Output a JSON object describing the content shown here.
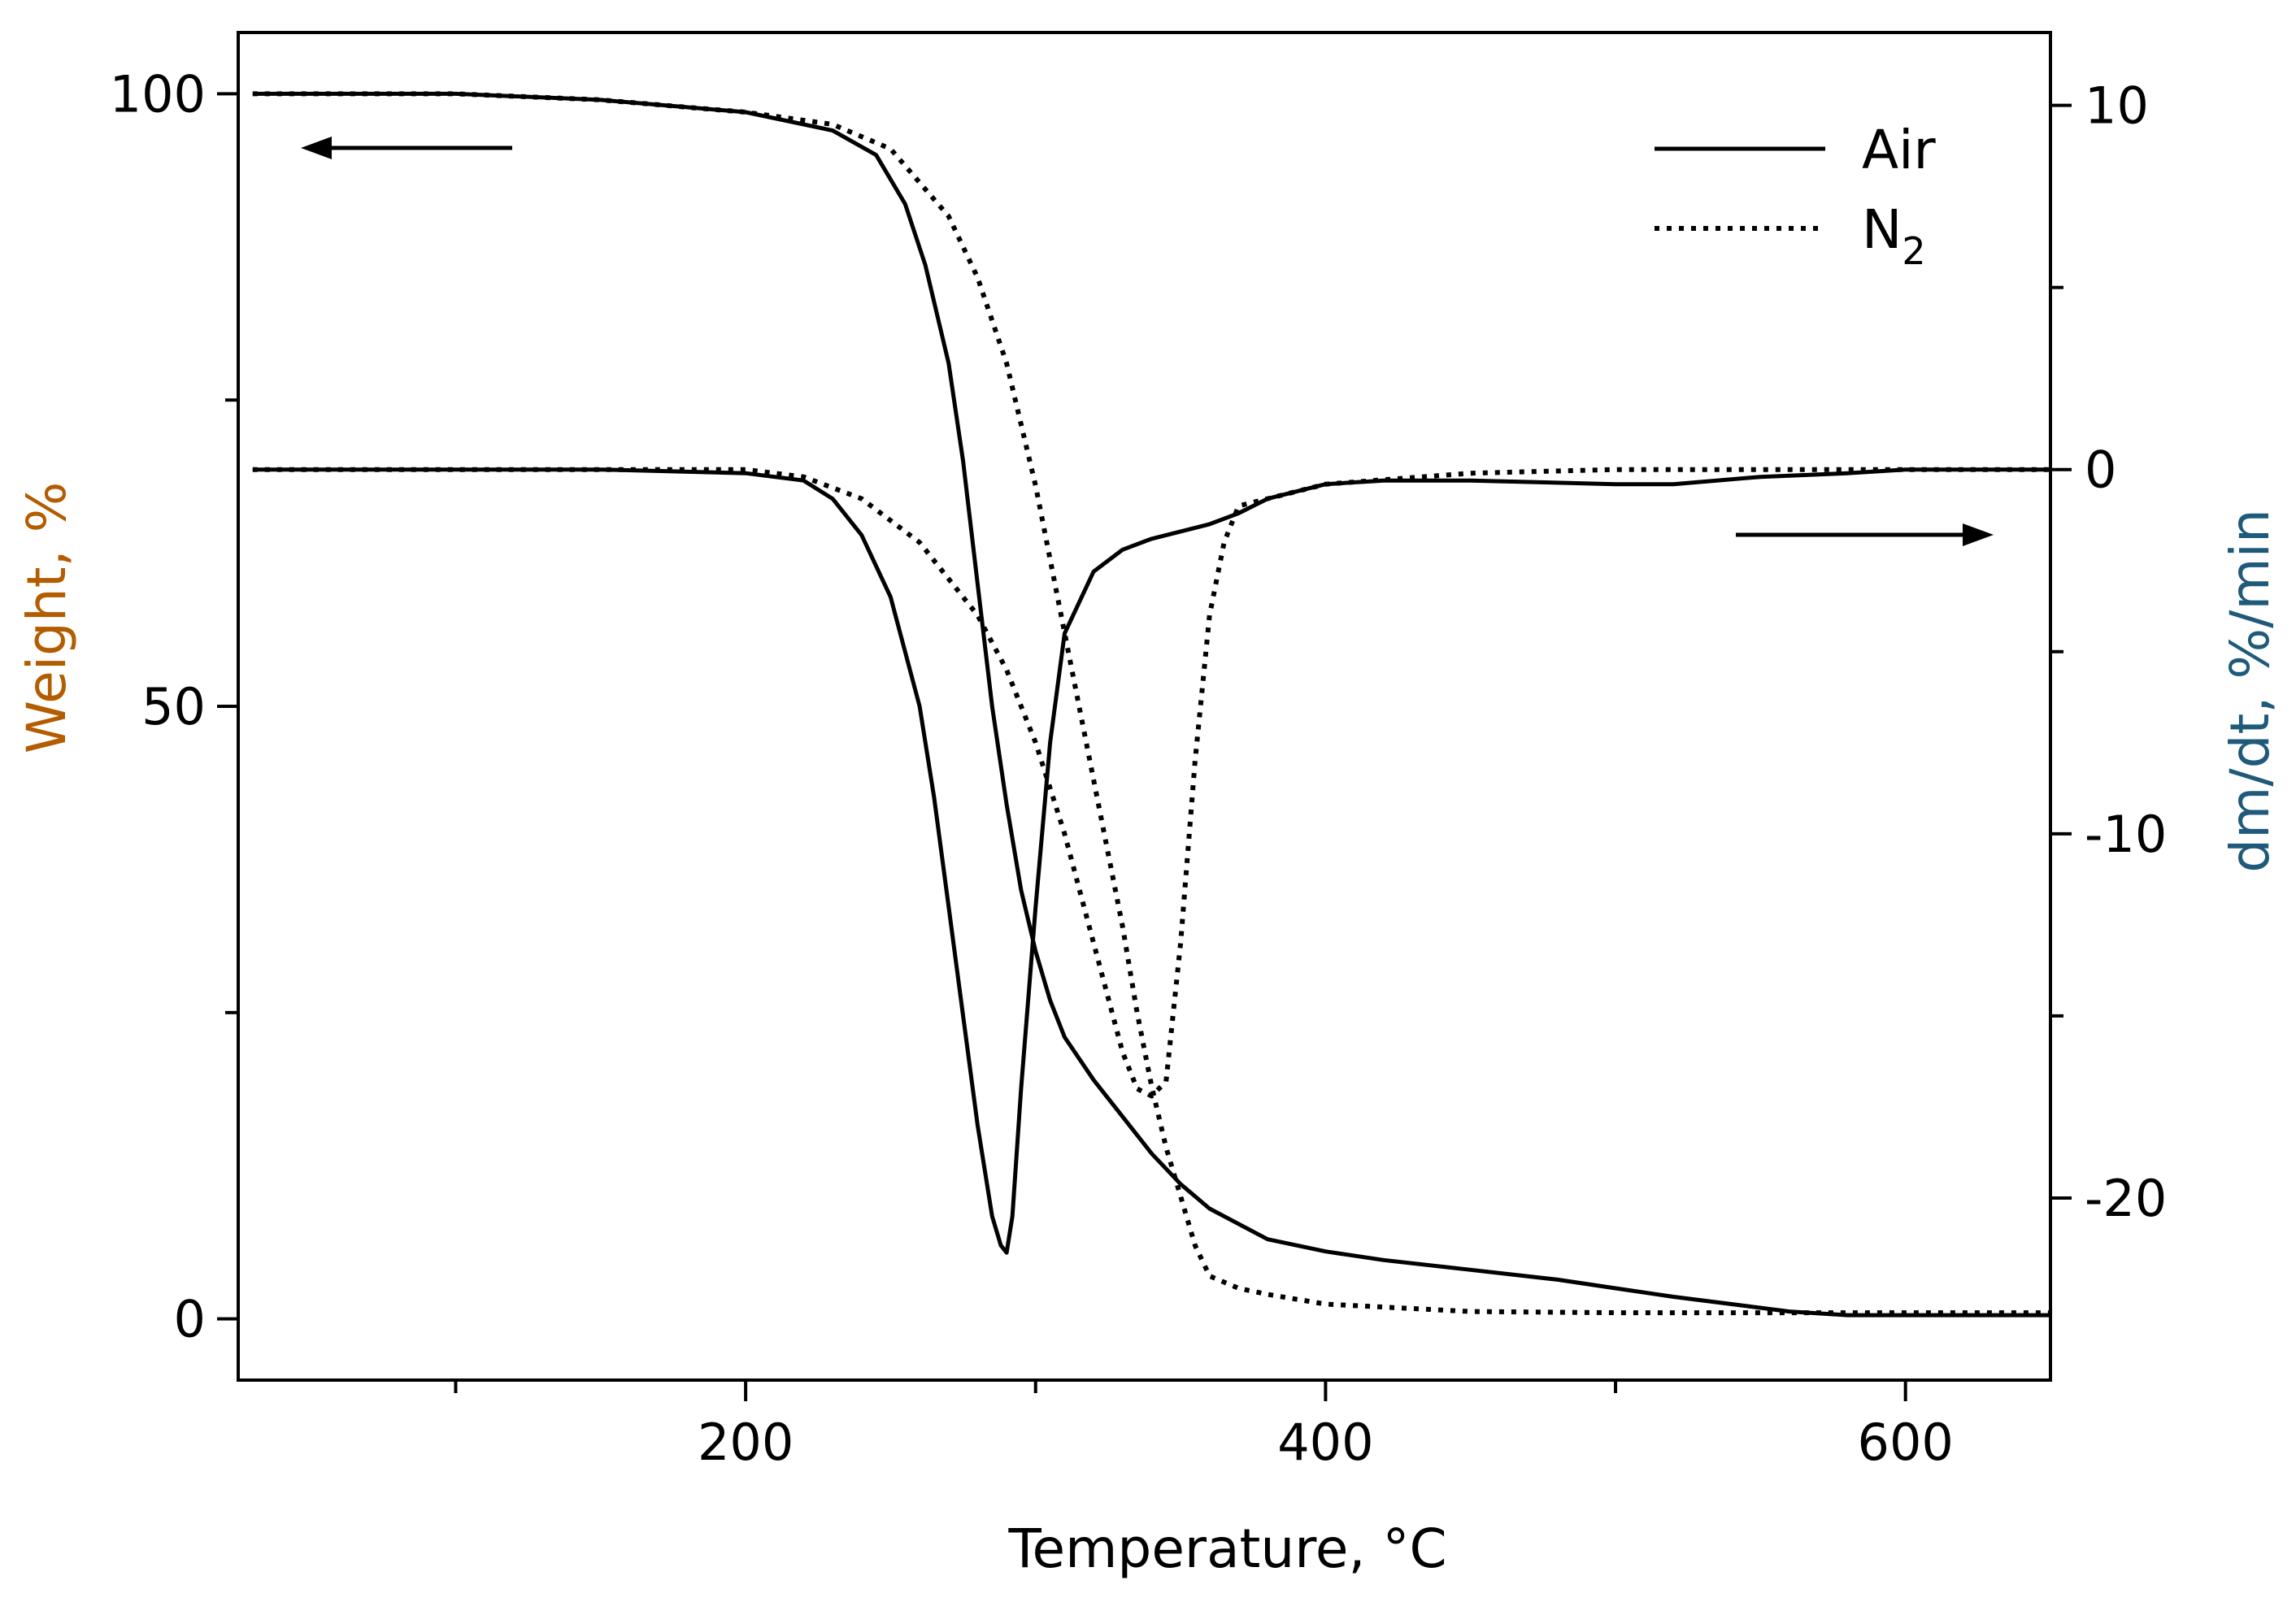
{
  "chart_data": {
    "type": "line",
    "title": "",
    "xlabel": "Temperature, °C",
    "ylabel_left": "Weight, %",
    "ylabel_right": "dm/dt, %/min",
    "xlim": [
      25,
      650
    ],
    "ylim_left": [
      -5,
      105
    ],
    "ylim_right": [
      -25,
      12
    ],
    "xticks": [
      200,
      400,
      600
    ],
    "xminor_ticks": [
      100,
      300,
      500
    ],
    "yticks_left": [
      0,
      50,
      100
    ],
    "yticks_left_minor": [
      25,
      75
    ],
    "yticks_right": [
      -20,
      -10,
      0,
      10
    ],
    "yticks_right_minor": [
      -15,
      -5,
      5
    ],
    "grid": false,
    "legend_position": "top-right",
    "label_color": "#b35c00",
    "right_label_color": "#1f5a7a",
    "legend": [
      {
        "label": "Air",
        "label_sub": "",
        "style": "solid"
      },
      {
        "label": "N",
        "label_sub": "2",
        "style": "dotted"
      }
    ],
    "series": [
      {
        "legend_index": 0,
        "axis": "left",
        "x": [
          30,
          100,
          150,
          200,
          230,
          245,
          255,
          262,
          270,
          275,
          280,
          285,
          290,
          295,
          300,
          305,
          310,
          320,
          330,
          340,
          350,
          360,
          380,
          400,
          420,
          450,
          480,
          500,
          520,
          540,
          560,
          580,
          600,
          650
        ],
        "y": [
          100,
          100,
          99.5,
          98.5,
          97,
          95,
          91,
          86,
          78,
          70,
          60,
          50,
          42,
          35,
          30,
          26,
          23,
          19.5,
          16.5,
          13.5,
          11,
          9,
          6.5,
          5.5,
          4.8,
          4,
          3.2,
          2.5,
          1.8,
          1.2,
          0.6,
          0.3,
          0.3,
          0.3
        ]
      },
      {
        "legend_index": 1,
        "axis": "left",
        "x": [
          30,
          100,
          150,
          200,
          230,
          250,
          270,
          280,
          290,
          300,
          310,
          320,
          330,
          335,
          340,
          345,
          350,
          355,
          360,
          370,
          380,
          400,
          450,
          500,
          550,
          600,
          650
        ],
        "y": [
          100,
          100,
          99.5,
          98.5,
          97.5,
          95.5,
          90,
          85,
          78,
          68,
          56,
          44,
          32,
          25,
          19,
          14,
          10,
          6,
          3.5,
          2.5,
          2,
          1.2,
          0.6,
          0.5,
          0.5,
          0.5,
          0.5
        ]
      },
      {
        "legend_index": 0,
        "axis": "right",
        "x": [
          30,
          100,
          150,
          200,
          220,
          230,
          240,
          250,
          260,
          265,
          270,
          275,
          280,
          285,
          288,
          290,
          292,
          295,
          300,
          305,
          310,
          320,
          330,
          340,
          350,
          360,
          370,
          380,
          400,
          420,
          450,
          500,
          520,
          550,
          580,
          600,
          650
        ],
        "y": [
          0,
          0,
          0,
          -0.1,
          -0.3,
          -0.8,
          -1.8,
          -3.5,
          -6.5,
          -9,
          -12,
          -15,
          -18,
          -20.5,
          -21.3,
          -21.5,
          -20.5,
          -17,
          -12,
          -7.5,
          -4.5,
          -2.8,
          -2.2,
          -1.9,
          -1.7,
          -1.5,
          -1.2,
          -0.8,
          -0.4,
          -0.3,
          -0.3,
          -0.4,
          -0.4,
          -0.2,
          -0.1,
          0,
          0
        ]
      },
      {
        "legend_index": 1,
        "axis": "right",
        "x": [
          30,
          100,
          150,
          200,
          220,
          240,
          260,
          280,
          290,
          300,
          310,
          320,
          330,
          335,
          340,
          345,
          350,
          355,
          360,
          365,
          370,
          380,
          400,
          450,
          500,
          550,
          600,
          650
        ],
        "y": [
          0,
          0,
          0,
          0,
          -0.2,
          -0.8,
          -2,
          -4,
          -5.5,
          -7.5,
          -10,
          -13,
          -16,
          -17,
          -17.2,
          -16.8,
          -13,
          -8,
          -4,
          -2,
          -1,
          -0.8,
          -0.4,
          -0.1,
          0,
          0,
          0,
          0
        ]
      }
    ]
  }
}
